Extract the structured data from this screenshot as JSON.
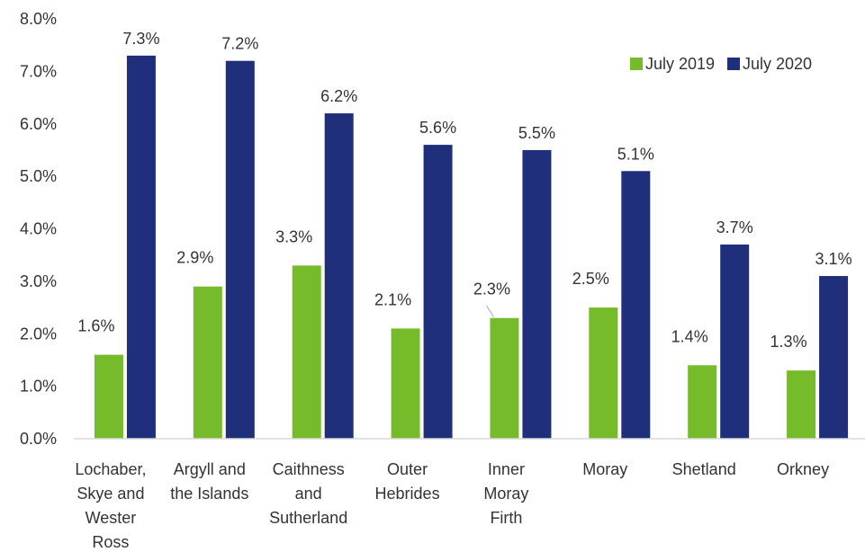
{
  "chart_data": {
    "type": "bar",
    "categories": [
      [
        "Lochaber,",
        "Skye and",
        "Wester",
        "Ross"
      ],
      [
        "Argyll and",
        "the Islands"
      ],
      [
        "Caithness",
        "and",
        "Sutherland"
      ],
      [
        "Outer",
        "Hebrides"
      ],
      [
        "Inner",
        "Moray",
        "Firth"
      ],
      [
        "Moray"
      ],
      [
        "Shetland"
      ],
      [
        "Orkney"
      ]
    ],
    "series": [
      {
        "name": "July 2019",
        "color": "#76bb2a",
        "values": [
          1.6,
          2.9,
          3.3,
          2.1,
          2.3,
          2.5,
          1.4,
          1.3
        ],
        "labels": [
          "1.6%",
          "2.9%",
          "3.3%",
          "2.1%",
          "2.3%",
          "2.5%",
          "1.4%",
          "1.3%"
        ]
      },
      {
        "name": "July 2020",
        "color": "#1f2f7c",
        "values": [
          7.3,
          7.2,
          6.2,
          5.6,
          5.5,
          5.1,
          3.7,
          3.1
        ],
        "labels": [
          "7.3%",
          "7.2%",
          "6.2%",
          "5.6%",
          "5.5%",
          "5.1%",
          "3.7%",
          "3.1%"
        ]
      }
    ],
    "ylim": [
      0,
      8
    ],
    "yticks": [
      "0.0%",
      "1.0%",
      "2.0%",
      "3.0%",
      "4.0%",
      "5.0%",
      "6.0%",
      "7.0%",
      "8.0%"
    ],
    "ytick_values": [
      0,
      1,
      2,
      3,
      4,
      5,
      6,
      7,
      8
    ],
    "grid": false,
    "legend_position": "top-right",
    "axis_color": "#d9d9d9",
    "text_color": "#333333"
  }
}
